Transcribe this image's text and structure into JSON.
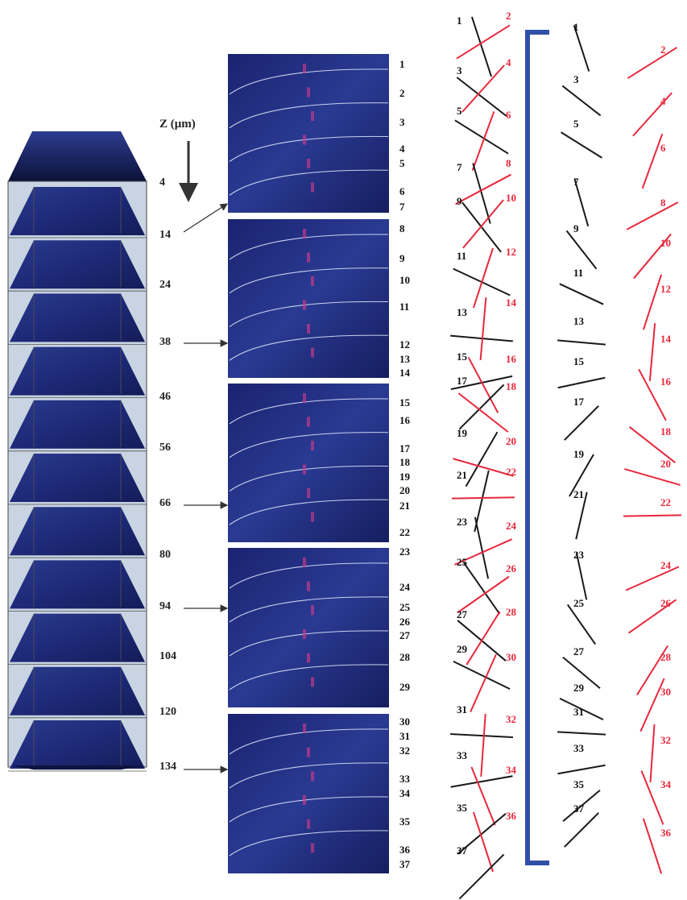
{
  "z_axis": {
    "header": "Z (μm)",
    "depths": [
      "4",
      "14",
      "24",
      "38",
      "46",
      "56",
      "66",
      "80",
      "94",
      "104",
      "120",
      "134"
    ],
    "arrow_depths": [
      "14",
      "38",
      "66",
      "94",
      "134"
    ]
  },
  "micrograph_labels": [
    "1",
    "2",
    "3",
    "4",
    "5",
    "6",
    "7",
    "8",
    "9",
    "10",
    "11",
    "12",
    "13",
    "14",
    "15",
    "16",
    "17",
    "18",
    "19",
    "20",
    "21",
    "22",
    "23",
    "24",
    "25",
    "26",
    "27",
    "28",
    "29",
    "30",
    "31",
    "32",
    "33",
    "34",
    "35",
    "36",
    "37"
  ],
  "colors": {
    "odd_fiber": "#1a1a1a",
    "even_fiber": "#e8283c",
    "bracket": "#3050a8",
    "micrograph": "#1e2a78",
    "box_side": "#c8d4e2"
  },
  "fibers": [
    {
      "n": "1",
      "angle": 72
    },
    {
      "n": "2",
      "angle": -32
    },
    {
      "n": "3",
      "angle": 38
    },
    {
      "n": "4",
      "angle": -48
    },
    {
      "n": "5",
      "angle": 32
    },
    {
      "n": "6",
      "angle": -70
    },
    {
      "n": "7",
      "angle": 74
    },
    {
      "n": "8",
      "angle": -28
    },
    {
      "n": "9",
      "angle": 52
    },
    {
      "n": "10",
      "angle": -50
    },
    {
      "n": "11",
      "angle": 25
    },
    {
      "n": "12",
      "angle": -72
    },
    {
      "n": "13",
      "angle": 5
    },
    {
      "n": "14",
      "angle": -85
    },
    {
      "n": "15",
      "angle": -12
    },
    {
      "n": "16",
      "angle": 62
    },
    {
      "n": "17",
      "angle": -45
    },
    {
      "n": "18",
      "angle": 38
    },
    {
      "n": "19",
      "angle": -60
    },
    {
      "n": "20",
      "angle": 16
    },
    {
      "n": "21",
      "angle": -77
    },
    {
      "n": "22",
      "angle": -1
    },
    {
      "n": "23",
      "angle": 78
    },
    {
      "n": "24",
      "angle": -24
    },
    {
      "n": "25",
      "angle": 55
    },
    {
      "n": "26",
      "angle": -35
    },
    {
      "n": "27",
      "angle": 40
    },
    {
      "n": "28",
      "angle": -58
    },
    {
      "n": "29",
      "angle": 26
    },
    {
      "n": "30",
      "angle": -66
    },
    {
      "n": "31",
      "angle": 3
    },
    {
      "n": "32",
      "angle": -86
    },
    {
      "n": "33",
      "angle": -10
    },
    {
      "n": "34",
      "angle": 68
    },
    {
      "n": "35",
      "angle": -40
    },
    {
      "n": "36",
      "angle": 72
    },
    {
      "n": "37",
      "angle": -45
    }
  ]
}
